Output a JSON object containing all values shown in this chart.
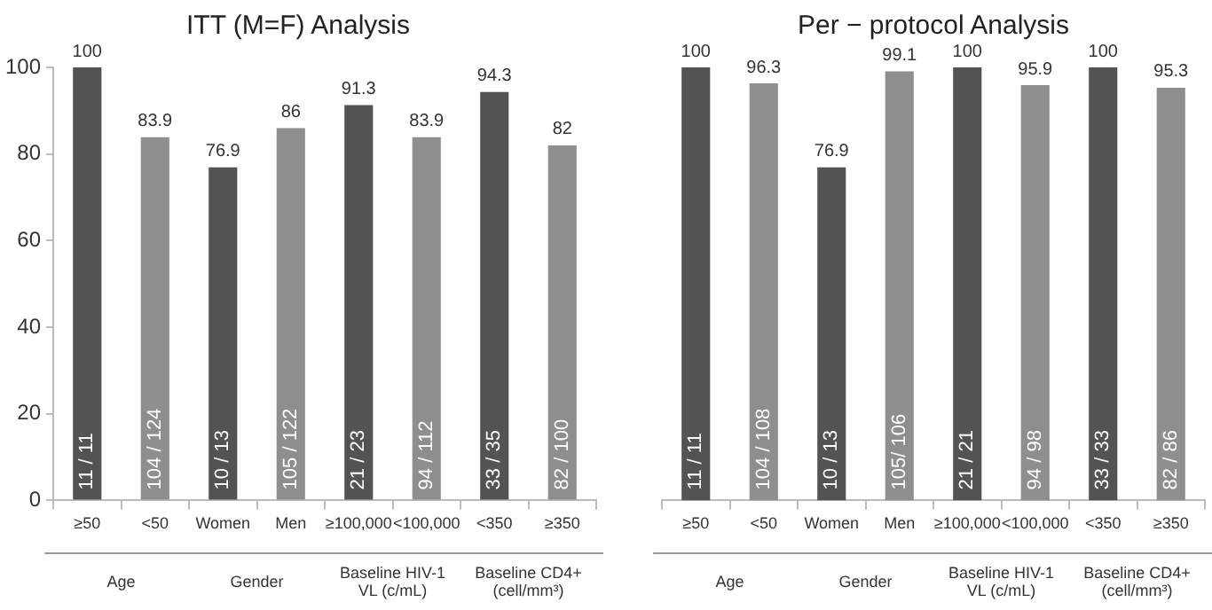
{
  "chart_data": [
    {
      "type": "bar",
      "title": "ITT (M=F) Analysis",
      "categories": [
        "≥50",
        "<50",
        "Women",
        "Men",
        "≥100,000",
        "<100,000",
        "<350",
        "≥350"
      ],
      "values": [
        100,
        83.9,
        76.9,
        86,
        91.3,
        83.9,
        94.3,
        82
      ],
      "colors": [
        "#535353",
        "#8e8e8e",
        "#535353",
        "#8e8e8e",
        "#535353",
        "#8e8e8e",
        "#535353",
        "#8e8e8e"
      ],
      "ylim": [
        0,
        100
      ],
      "yticks": [
        0,
        20,
        40,
        60,
        80,
        100
      ],
      "grid": false,
      "legend": false,
      "data_labels": true,
      "annotations": [
        "11 / 11",
        "104 / 124",
        "10 / 13",
        "105 / 122",
        "21 / 23",
        "94 / 112",
        "33 / 35",
        "82 / 100",
        "Age",
        "Gender",
        "Baseline HIV-1\nVL (c/mL)",
        "Baseline CD4+\n(cell/mm³)"
      ]
    },
    {
      "type": "bar",
      "title": "Per − protocol Analysis",
      "categories": [
        "≥50",
        "<50",
        "Women",
        "Men",
        "≥100,000",
        "<100,000",
        "<350",
        "≥350"
      ],
      "values": [
        100,
        96.3,
        76.9,
        99.1,
        100,
        95.9,
        100,
        95.3
      ],
      "colors": [
        "#535353",
        "#8e8e8e",
        "#535353",
        "#8e8e8e",
        "#535353",
        "#8e8e8e",
        "#535353",
        "#8e8e8e"
      ],
      "ylim": [
        0,
        100
      ],
      "yticks": [
        0,
        20,
        40,
        60,
        80,
        100
      ],
      "tick_labels": "x",
      "grid": false,
      "legend": false,
      "data_labels": true,
      "annotations": [
        "11 / 11",
        "104 / 108",
        "10 / 13",
        "105/ 106",
        "21 / 21",
        "94 / 98",
        "33 / 33",
        "82 / 86",
        "Age",
        "Gender",
        "Baseline HIV-1\nVL (c/mL)",
        "Baseline CD4+\n(cell/mm³)"
      ]
    }
  ]
}
